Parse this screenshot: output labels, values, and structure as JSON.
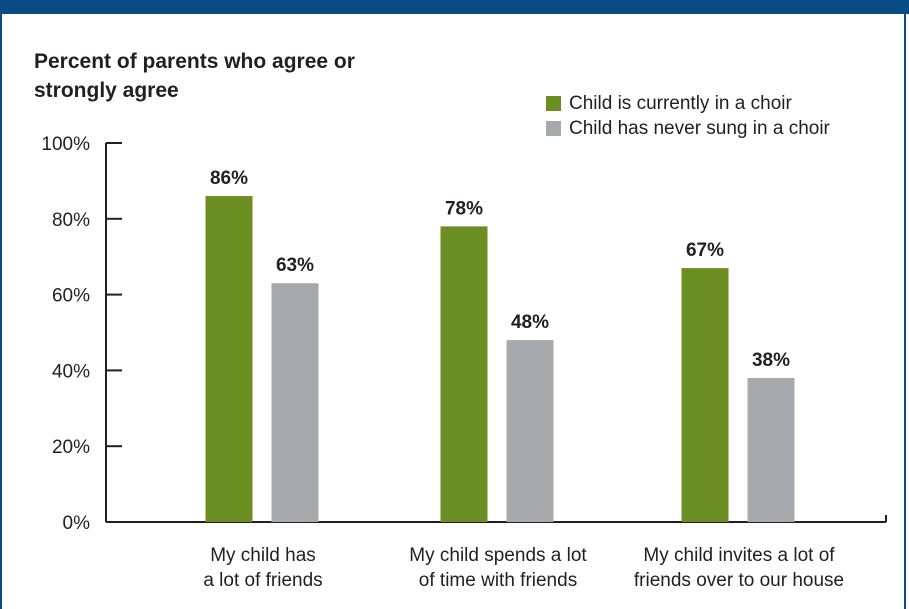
{
  "colors": {
    "header_band": "#0a4a85",
    "frame": "#0a4a85",
    "axis": "#231f20",
    "text": "#231f20"
  },
  "chart_data": {
    "type": "bar",
    "title": "Percent of parents who agree or strongly agree",
    "categories": [
      [
        "My child has",
        "a lot of friends"
      ],
      [
        "My child spends a lot",
        "of time with friends"
      ],
      [
        "My child invites a lot of",
        "friends over to our house"
      ]
    ],
    "series": [
      {
        "name": "Child is currently in a choir",
        "color": "#6b8e23",
        "values": [
          86,
          78,
          67
        ],
        "labels": [
          "86%",
          "78%",
          "67%"
        ]
      },
      {
        "name": "Child has never sung in a choir",
        "color": "#a7a9ac",
        "values": [
          63,
          48,
          38
        ],
        "labels": [
          "63%",
          "48%",
          "38%"
        ]
      }
    ],
    "yticks": [
      0,
      20,
      40,
      60,
      80,
      100
    ],
    "ytick_labels": [
      "0%",
      "20%",
      "40%",
      "60%",
      "80%",
      "100%"
    ],
    "ylim": [
      0,
      100
    ],
    "grid": false,
    "legend_position": "top-right"
  }
}
